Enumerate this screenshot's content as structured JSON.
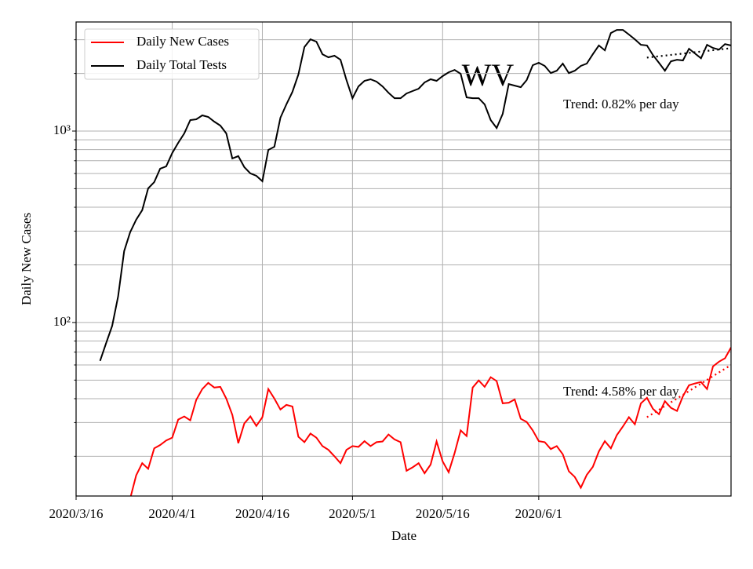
{
  "chart_data": {
    "type": "line",
    "annotation": "WV",
    "xlabel": "Date",
    "ylabel": "Daily New Cases",
    "log_y": true,
    "grid": true,
    "legend": "upper left",
    "x": [
      "2020/3/20",
      "2020/3/21",
      "2020/3/22",
      "2020/3/23",
      "2020/3/24",
      "2020/3/25",
      "2020/3/26",
      "2020/3/27",
      "2020/3/28",
      "2020/3/29",
      "2020/3/30",
      "2020/3/31",
      "2020/4/1",
      "2020/4/2",
      "2020/4/3",
      "2020/4/4",
      "2020/4/5",
      "2020/4/6",
      "2020/4/7",
      "2020/4/8",
      "2020/4/9",
      "2020/4/10",
      "2020/4/11",
      "2020/4/12",
      "2020/4/13",
      "2020/4/14",
      "2020/4/15",
      "2020/4/16",
      "2020/4/17",
      "2020/4/18",
      "2020/4/19",
      "2020/4/20",
      "2020/4/21",
      "2020/4/22",
      "2020/4/23",
      "2020/4/24",
      "2020/4/25",
      "2020/4/26",
      "2020/4/27",
      "2020/4/28",
      "2020/4/29",
      "2020/4/30",
      "2020/5/1",
      "2020/5/2",
      "2020/5/3",
      "2020/5/4",
      "2020/5/5",
      "2020/5/6",
      "2020/5/7",
      "2020/5/8",
      "2020/5/9",
      "2020/5/10",
      "2020/5/11",
      "2020/5/12",
      "2020/5/13",
      "2020/5/14",
      "2020/5/15",
      "2020/5/16",
      "2020/5/17",
      "2020/5/18",
      "2020/5/19",
      "2020/5/20",
      "2020/5/21",
      "2020/5/22",
      "2020/5/23",
      "2020/5/24",
      "2020/5/25",
      "2020/5/26",
      "2020/5/27",
      "2020/5/28",
      "2020/5/29",
      "2020/5/30",
      "2020/5/31",
      "2020/6/1",
      "2020/6/2",
      "2020/6/3",
      "2020/6/4",
      "2020/6/5",
      "2020/6/6",
      "2020/6/7",
      "2020/6/8",
      "2020/6/9",
      "2020/6/10",
      "2020/6/11",
      "2020/6/12",
      "2020/6/13",
      "2020/6/14",
      "2020/6/15",
      "2020/6/16",
      "2020/6/17",
      "2020/6/18",
      "2020/6/19",
      "2020/6/20",
      "2020/6/21",
      "2020/6/22",
      "2020/6/23",
      "2020/6/24",
      "2020/6/25",
      "2020/6/26",
      "2020/6/27",
      "2020/6/28",
      "2020/6/29",
      "2020/6/30",
      "2020/7/1",
      "2020/7/2",
      "2020/7/3"
    ],
    "series": [
      {
        "name": "Daily New Cases",
        "color": "#ff0000",
        "values": [
          null,
          null,
          null,
          null,
          null,
          12,
          15.9,
          18.4,
          17.2,
          22,
          22.9,
          24.2,
          25,
          31.1,
          32.3,
          30.8,
          39.4,
          44.9,
          48.4,
          45.7,
          46.1,
          40,
          32.9,
          23.4,
          29.7,
          32.3,
          28.8,
          32,
          44.9,
          40,
          35.1,
          37.1,
          36.4,
          25.3,
          23.7,
          26.3,
          25,
          22.6,
          21.6,
          20,
          18.4,
          21.6,
          22.6,
          22.4,
          24,
          22.6,
          23.7,
          23.9,
          26,
          24.5,
          23.7,
          16.8,
          17.5,
          18.4,
          16.3,
          18.1,
          23.9,
          18.8,
          16.5,
          20.8,
          27.3,
          25.5,
          45.7,
          49.8,
          46.1,
          51.8,
          49.4,
          37.8,
          38.1,
          39.6,
          31.4,
          30.2,
          27.3,
          24,
          23.7,
          21.8,
          22.6,
          20.5,
          16.7,
          15.6,
          13.7,
          16,
          17.6,
          21.2,
          24,
          22,
          25.8,
          28.6,
          32,
          29.4,
          37.8,
          40.4,
          35.4,
          33.2,
          38.8,
          35.8,
          34.5,
          41.2,
          47,
          48,
          48.9,
          44.9,
          59,
          62.4,
          65,
          74
        ]
      },
      {
        "name": "Daily Total Tests",
        "color": "#000000",
        "values": [
          63,
          78,
          96,
          137,
          236,
          296,
          344,
          386,
          502,
          541,
          636,
          654,
          768,
          868,
          972,
          1141,
          1152,
          1208,
          1185,
          1120,
          1068,
          972,
          719,
          740,
          648,
          601,
          584,
          547,
          797,
          828,
          1174,
          1378,
          1602,
          1973,
          2748,
          3016,
          2932,
          2520,
          2428,
          2475,
          2360,
          1847,
          1486,
          1712,
          1830,
          1864,
          1812,
          1712,
          1586,
          1486,
          1486,
          1572,
          1618,
          1665,
          1795,
          1864,
          1830,
          1936,
          2028,
          2087,
          1992,
          1500,
          1486,
          1486,
          1378,
          1141,
          1038,
          1230,
          1760,
          1727,
          1695,
          1847,
          2209,
          2274,
          2189,
          2009,
          2067,
          2252,
          2009,
          2067,
          2189,
          2252,
          2520,
          2800,
          2641,
          3252,
          3378,
          3378,
          3195,
          3016,
          2822,
          2800,
          2496,
          2274,
          2067,
          2316,
          2360,
          2340,
          2693,
          2544,
          2400,
          2822,
          2718,
          2665,
          2846,
          2800
        ]
      }
    ],
    "trends": [
      {
        "label": "Trend: 0.82% per day",
        "color": "#000000",
        "x": [
          "2020/6/19",
          "2020/7/3"
        ],
        "values": [
          2420,
          2710
        ]
      },
      {
        "label": "Trend: 4.58% per day",
        "color": "#ff0000",
        "x": [
          "2020/6/19",
          "2020/7/3"
        ],
        "values": [
          32,
          60
        ]
      }
    ],
    "xlim": [
      "2020/3/16",
      "2020/7/3"
    ],
    "xticks": [
      "2020/3/16",
      "2020/4/1",
      "2020/4/16",
      "2020/5/1",
      "2020/5/16",
      "2020/6/1"
    ],
    "ylim": [
      12.4,
      3715
    ],
    "yticks": [
      {
        "value": 100,
        "label": "10²"
      },
      {
        "value": 1000,
        "label": "10³"
      }
    ],
    "yminor_ticks": [
      20,
      30,
      40,
      50,
      60,
      70,
      80,
      90,
      200,
      300,
      400,
      500,
      600,
      700,
      800,
      900,
      2000,
      3000
    ]
  }
}
